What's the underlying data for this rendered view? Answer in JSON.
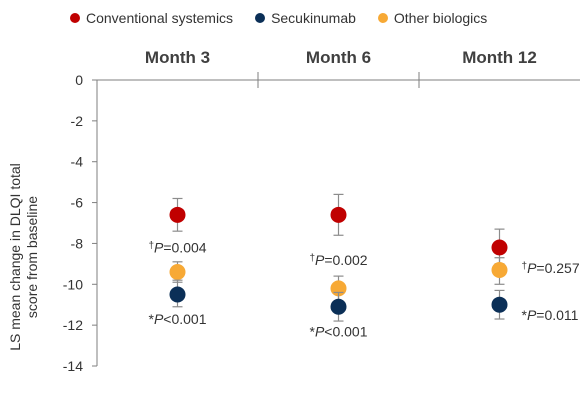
{
  "legend": [
    {
      "label": "Conventional systemics",
      "color": "#c00000"
    },
    {
      "label": "Secukinumab",
      "color": "#0b2f57"
    },
    {
      "label": "Other biologics",
      "color": "#f7a935"
    }
  ],
  "chart_data": {
    "type": "scatter",
    "categories": [
      "Month 3",
      "Month 6",
      "Month 12"
    ],
    "ylabel_lines": [
      "LS mean change in DLQI total",
      "score from baseline"
    ],
    "ylim": [
      -14,
      0
    ],
    "yticks": [
      0,
      -2,
      -4,
      -6,
      -8,
      -10,
      -12,
      -14
    ],
    "grid": false,
    "legend_position": "top",
    "series": [
      {
        "name": "Conventional systemics",
        "color": "#c00000",
        "values": [
          -6.6,
          -6.6,
          -8.2
        ],
        "err_low": [
          -7.4,
          -7.6,
          -9.0
        ],
        "err_high": [
          -5.8,
          -5.6,
          -7.3
        ]
      },
      {
        "name": "Other biologics",
        "color": "#f7a935",
        "values": [
          -9.4,
          -10.2,
          -9.3
        ],
        "err_low": [
          -9.9,
          -10.9,
          -10.0
        ],
        "err_high": [
          -8.9,
          -9.6,
          -8.7
        ]
      },
      {
        "name": "Secukinumab",
        "color": "#0b2f57",
        "values": [
          -10.5,
          -11.1,
          -11.0
        ],
        "err_low": [
          -11.1,
          -11.8,
          -11.7
        ],
        "err_high": [
          -9.8,
          -10.4,
          -10.3
        ]
      }
    ],
    "annotations": [
      {
        "sup": "†",
        "p": "P",
        "rest": "=0.004",
        "category": 0,
        "anchor_y": -8.2
      },
      {
        "sup": "*",
        "p": "P",
        "rest": "<0.001",
        "category": 0,
        "anchor_y": -11.7
      },
      {
        "sup": "†",
        "p": "P",
        "rest": "=0.002",
        "category": 1,
        "anchor_y": -8.8
      },
      {
        "sup": "*",
        "p": "P",
        "rest": "<0.001",
        "category": 1,
        "anchor_y": -12.3
      },
      {
        "sup": "†",
        "p": "P",
        "rest": "=0.257",
        "category": 2,
        "anchor_y": -9.2
      },
      {
        "sup": "*",
        "p": "P",
        "rest": "=0.011",
        "category": 2,
        "anchor_y": -11.5
      }
    ]
  }
}
